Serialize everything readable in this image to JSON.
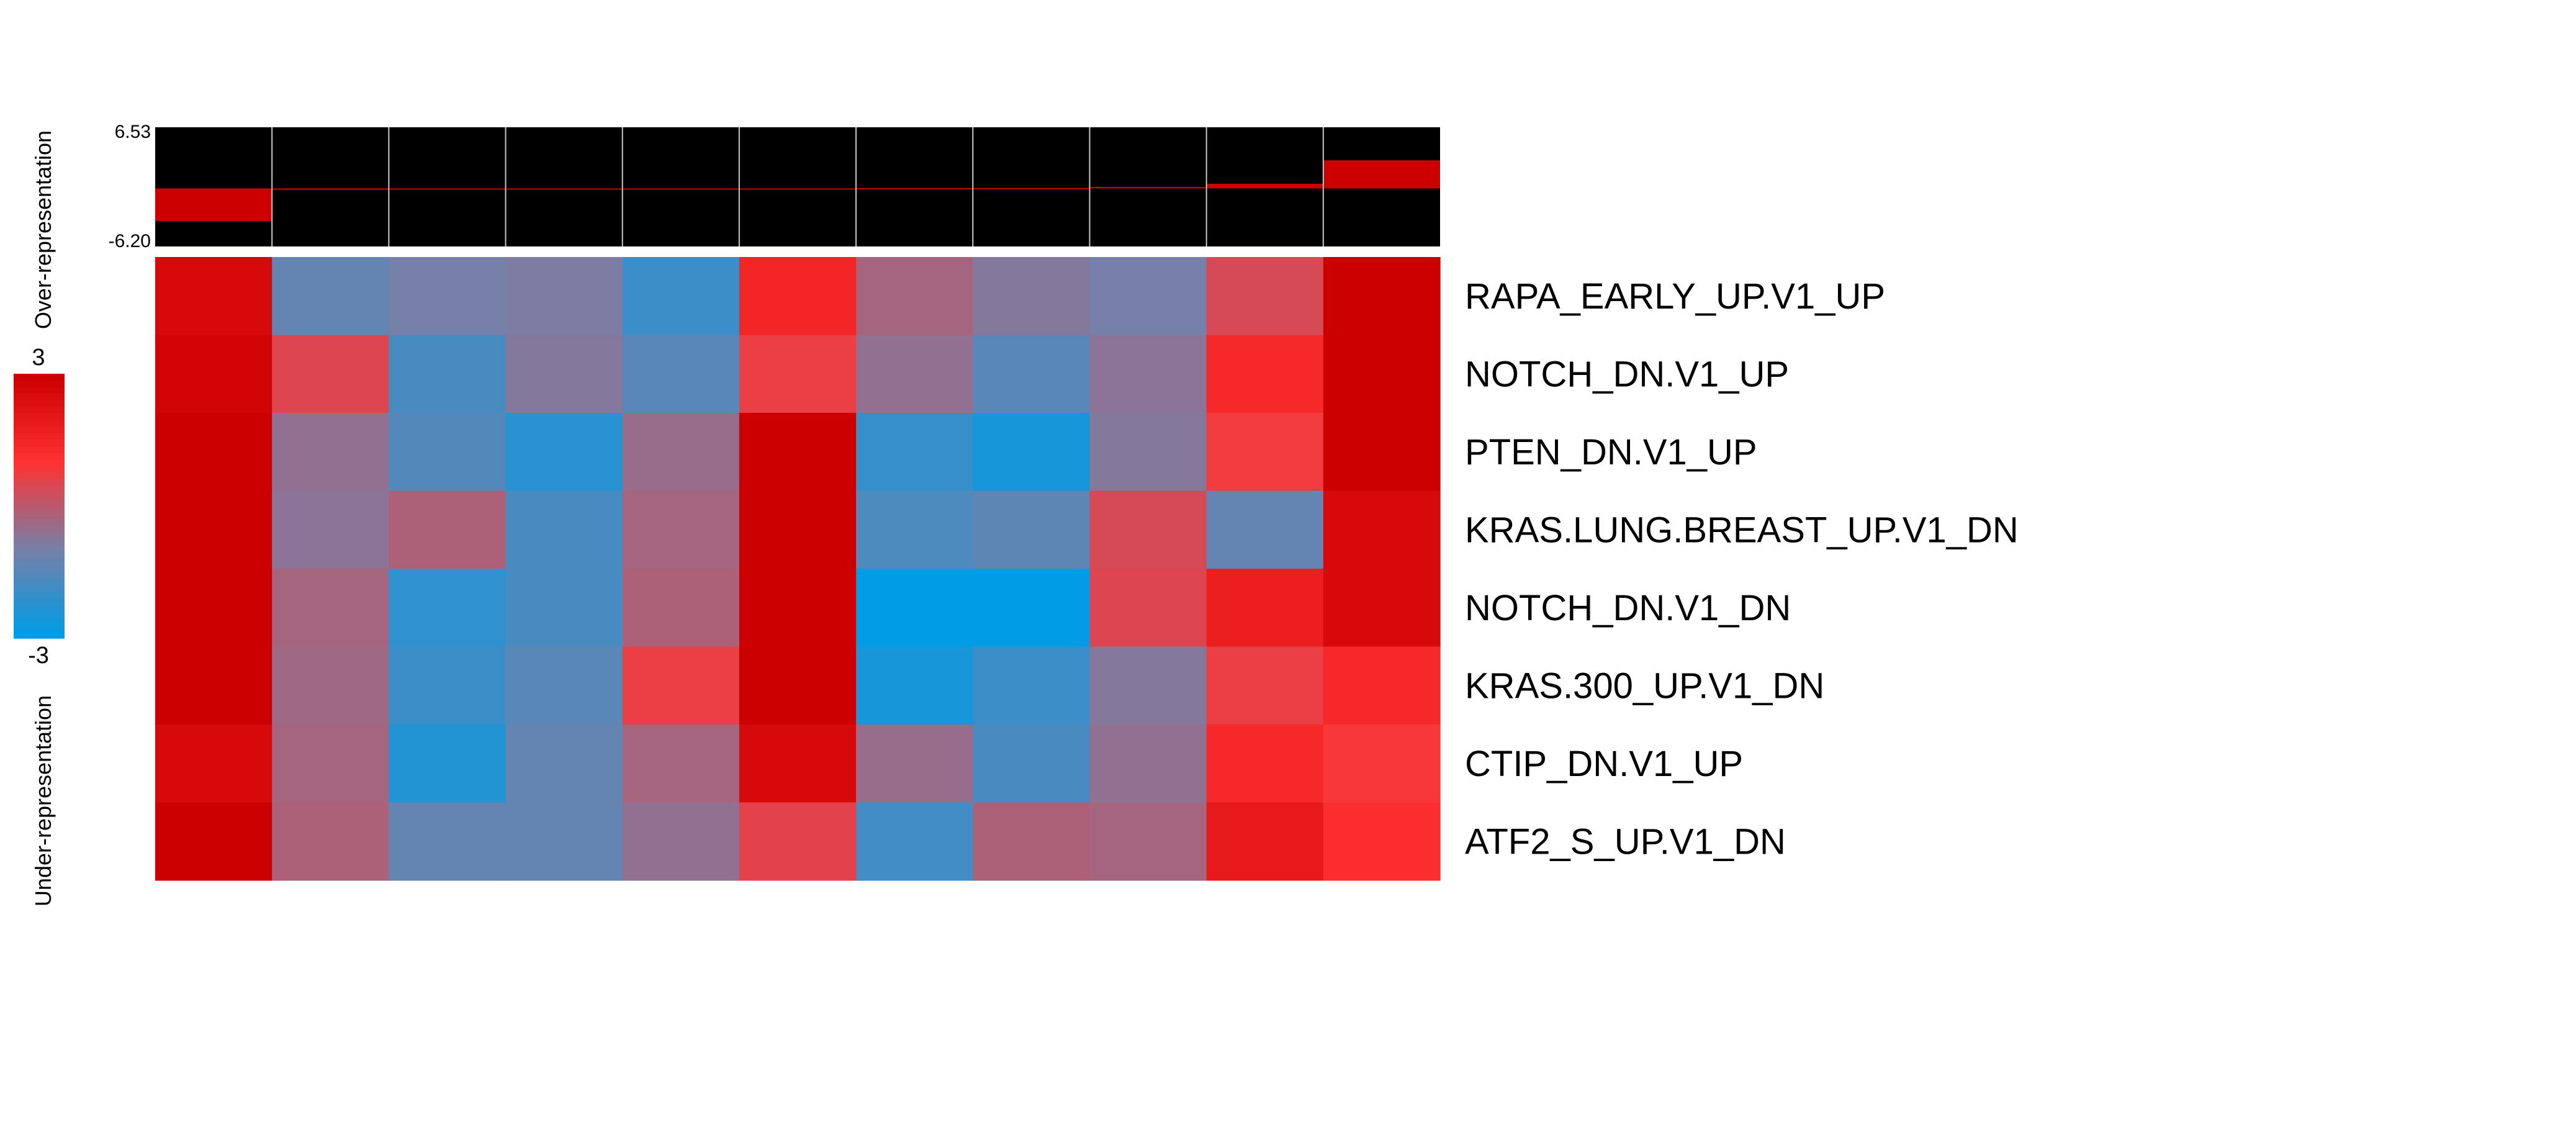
{
  "chart_data": {
    "type": "heatmap",
    "side_labels": {
      "top": "Over-representation",
      "bottom": "Under-representation"
    },
    "bar_panel": {
      "y_max_label": "6.53",
      "y_min_label": "-6.20",
      "ylim": [
        -6.2,
        6.53
      ],
      "values": [
        -3.5,
        -0.15,
        -0.1,
        -0.05,
        -0.03,
        0.0,
        0.03,
        0.05,
        0.15,
        0.5,
        3.0
      ],
      "bar_color": "#CC0000",
      "background_color": "#000000"
    },
    "color_scale": {
      "max_label": "3",
      "min_label": "-3",
      "range": [
        -3,
        3
      ],
      "stops": [
        "#009CE6",
        "#7680A8",
        "#FF3333",
        "#CC0000"
      ]
    },
    "rows": [
      "RAPA_EARLY_UP.V1_UP",
      "NOTCH_DN.V1_UP",
      "PTEN_DN.V1_UP",
      "KRAS.LUNG.BREAST_UP.V1_DN",
      "NOTCH_DN.V1_DN",
      "KRAS.300_UP.V1_DN",
      "CTIP_DN.V1_UP",
      "ATF2_S_UP.V1_DN"
    ],
    "values": [
      [
        2.6,
        -1.3,
        -1.0,
        -0.9,
        -2.0,
        1.5,
        -0.3,
        -0.8,
        -1.0,
        0.4,
        3.0
      ],
      [
        2.8,
        0.5,
        -1.8,
        -0.8,
        -1.5,
        0.7,
        -0.6,
        -1.5,
        -0.7,
        1.4,
        3.0
      ],
      [
        3.0,
        -0.6,
        -1.6,
        -2.3,
        -0.5,
        3.0,
        -2.1,
        -2.6,
        -0.8,
        0.8,
        3.0
      ],
      [
        3.0,
        -0.7,
        -0.2,
        -1.8,
        -0.3,
        3.0,
        -1.7,
        -1.4,
        0.4,
        -1.3,
        2.6
      ],
      [
        3.0,
        -0.3,
        -2.2,
        -1.8,
        -0.2,
        3.0,
        -3.0,
        -3.0,
        0.5,
        1.8,
        2.6
      ],
      [
        3.0,
        -0.4,
        -2.0,
        -1.5,
        0.7,
        3.0,
        -2.6,
        -2.0,
        -0.8,
        0.7,
        1.4
      ],
      [
        2.6,
        -0.3,
        -2.4,
        -1.3,
        -0.3,
        2.6,
        -0.5,
        -1.8,
        -0.6,
        1.4,
        0.9
      ],
      [
        3.0,
        -0.2,
        -1.3,
        -1.3,
        -0.6,
        0.6,
        -1.9,
        -0.2,
        -0.3,
        2.0,
        1.2
      ]
    ]
  }
}
